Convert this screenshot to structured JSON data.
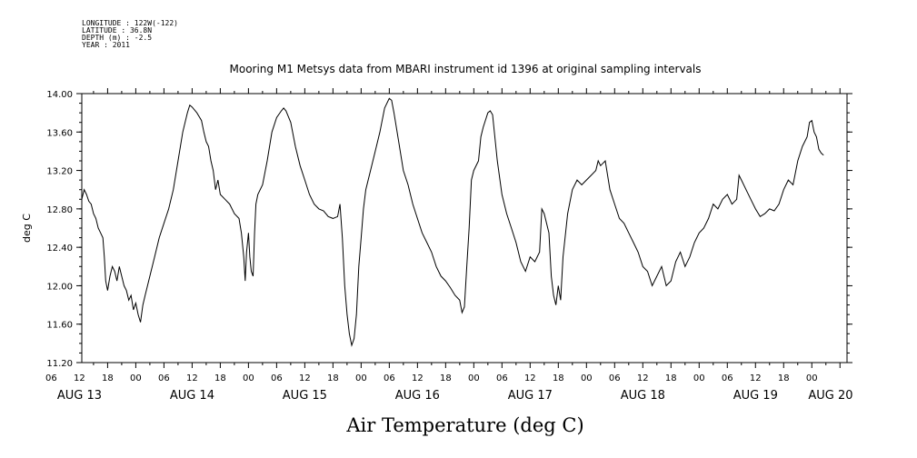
{
  "metadata_lines": [
    "LONGITUDE : 122W(-122)",
    "LATITUDE : 36.8N",
    "DEPTH (m) : -2.5",
    "YEAR : 2011"
  ],
  "chart_data": {
    "type": "line",
    "title": "Mooring M1 Metsys data from MBARI instrument id 1396 at original sampling intervals",
    "xlabel": "Air Temperature (deg C)",
    "ylabel": "deg C",
    "ylim": [
      11.2,
      14.0
    ],
    "xlim_hours": [
      60.5,
      223.5
    ],
    "x_axis_origin": "AUG 11 00:00 (x values in hours)",
    "yticks": [
      11.2,
      11.6,
      12.0,
      12.4,
      12.8,
      13.2,
      13.6,
      14.0
    ],
    "ytick_labels": [
      "11.20",
      "11.60",
      "12.00",
      "12.40",
      "12.80",
      "13.20",
      "13.60",
      "14.00"
    ],
    "xtick_hour_labels": [
      {
        "h": 54,
        "label": "06"
      },
      {
        "h": 60,
        "label": "12"
      },
      {
        "h": 66,
        "label": "18"
      },
      {
        "h": 72,
        "label": "00"
      },
      {
        "h": 78,
        "label": "06"
      },
      {
        "h": 84,
        "label": "12"
      },
      {
        "h": 90,
        "label": "18"
      },
      {
        "h": 96,
        "label": "00"
      },
      {
        "h": 102,
        "label": "06"
      },
      {
        "h": 108,
        "label": "12"
      },
      {
        "h": 114,
        "label": "18"
      },
      {
        "h": 120,
        "label": "00"
      },
      {
        "h": 126,
        "label": "06"
      },
      {
        "h": 132,
        "label": "12"
      },
      {
        "h": 138,
        "label": "18"
      },
      {
        "h": 144,
        "label": "00"
      },
      {
        "h": 150,
        "label": "06"
      },
      {
        "h": 156,
        "label": "12"
      },
      {
        "h": 162,
        "label": "18"
      },
      {
        "h": 168,
        "label": "00"
      },
      {
        "h": 174,
        "label": "06"
      },
      {
        "h": 180,
        "label": "12"
      },
      {
        "h": 186,
        "label": "18"
      },
      {
        "h": 192,
        "label": "00"
      },
      {
        "h": 198,
        "label": "06"
      },
      {
        "h": 204,
        "label": "12"
      },
      {
        "h": 210,
        "label": "18"
      },
      {
        "h": 216,
        "label": "00"
      }
    ],
    "xtick_day_labels": [
      {
        "h": 60,
        "label": "AUG 13"
      },
      {
        "h": 84,
        "label": "AUG 14"
      },
      {
        "h": 108,
        "label": "AUG 15"
      },
      {
        "h": 132,
        "label": "AUG 16"
      },
      {
        "h": 156,
        "label": "AUG 17"
      },
      {
        "h": 180,
        "label": "AUG 18"
      },
      {
        "h": 204,
        "label": "AUG 19"
      },
      {
        "h": 220,
        "label": "AUG 20"
      }
    ],
    "series": [
      {
        "name": "",
        "color": "#000000",
        "points": [
          [
            60.5,
            12.9
          ],
          [
            61.0,
            13.0
          ],
          [
            61.5,
            12.95
          ],
          [
            62.0,
            12.88
          ],
          [
            62.5,
            12.85
          ],
          [
            63.0,
            12.75
          ],
          [
            63.5,
            12.7
          ],
          [
            64.0,
            12.6
          ],
          [
            64.5,
            12.55
          ],
          [
            65.0,
            12.5
          ],
          [
            65.3,
            12.3
          ],
          [
            65.6,
            12.05
          ],
          [
            66.0,
            11.95
          ],
          [
            66.5,
            12.1
          ],
          [
            67.0,
            12.2
          ],
          [
            67.5,
            12.15
          ],
          [
            68.0,
            12.05
          ],
          [
            68.5,
            12.2
          ],
          [
            69.0,
            12.1
          ],
          [
            69.5,
            12.0
          ],
          [
            70.0,
            11.95
          ],
          [
            70.5,
            11.85
          ],
          [
            71.0,
            11.9
          ],
          [
            71.5,
            11.75
          ],
          [
            72.0,
            11.82
          ],
          [
            72.5,
            11.7
          ],
          [
            73.0,
            11.62
          ],
          [
            73.5,
            11.8
          ],
          [
            74.0,
            11.9
          ],
          [
            75.0,
            12.1
          ],
          [
            76.0,
            12.3
          ],
          [
            77.0,
            12.5
          ],
          [
            78.0,
            12.65
          ],
          [
            79.0,
            12.8
          ],
          [
            80.0,
            13.0
          ],
          [
            81.0,
            13.3
          ],
          [
            82.0,
            13.6
          ],
          [
            83.0,
            13.8
          ],
          [
            83.5,
            13.88
          ],
          [
            84.0,
            13.86
          ],
          [
            85.0,
            13.8
          ],
          [
            86.0,
            13.72
          ],
          [
            86.5,
            13.6
          ],
          [
            87.0,
            13.5
          ],
          [
            87.5,
            13.45
          ],
          [
            88.0,
            13.3
          ],
          [
            88.5,
            13.2
          ],
          [
            89.0,
            13.0
          ],
          [
            89.5,
            13.1
          ],
          [
            90.0,
            12.95
          ],
          [
            91.0,
            12.9
          ],
          [
            92.0,
            12.85
          ],
          [
            93.0,
            12.75
          ],
          [
            94.0,
            12.7
          ],
          [
            94.5,
            12.55
          ],
          [
            95.0,
            12.3
          ],
          [
            95.3,
            12.05
          ],
          [
            95.6,
            12.35
          ],
          [
            96.0,
            12.55
          ],
          [
            96.3,
            12.3
          ],
          [
            96.6,
            12.15
          ],
          [
            97.0,
            12.1
          ],
          [
            97.3,
            12.55
          ],
          [
            97.6,
            12.85
          ],
          [
            98.0,
            12.95
          ],
          [
            99.0,
            13.05
          ],
          [
            100.0,
            13.3
          ],
          [
            101.0,
            13.6
          ],
          [
            102.0,
            13.75
          ],
          [
            103.0,
            13.82
          ],
          [
            103.5,
            13.85
          ],
          [
            104.0,
            13.82
          ],
          [
            105.0,
            13.7
          ],
          [
            106.0,
            13.45
          ],
          [
            107.0,
            13.25
          ],
          [
            108.0,
            13.1
          ],
          [
            109.0,
            12.95
          ],
          [
            110.0,
            12.85
          ],
          [
            111.0,
            12.8
          ],
          [
            112.0,
            12.78
          ],
          [
            113.0,
            12.72
          ],
          [
            114.0,
            12.7
          ],
          [
            115.0,
            12.72
          ],
          [
            115.5,
            12.85
          ],
          [
            116.0,
            12.5
          ],
          [
            116.5,
            12.0
          ],
          [
            117.0,
            11.7
          ],
          [
            117.5,
            11.5
          ],
          [
            118.0,
            11.38
          ],
          [
            118.5,
            11.45
          ],
          [
            119.0,
            11.7
          ],
          [
            119.5,
            12.2
          ],
          [
            120.0,
            12.5
          ],
          [
            120.5,
            12.8
          ],
          [
            121.0,
            13.0
          ],
          [
            122.0,
            13.2
          ],
          [
            123.0,
            13.4
          ],
          [
            124.0,
            13.6
          ],
          [
            125.0,
            13.85
          ],
          [
            126.0,
            13.95
          ],
          [
            126.5,
            13.93
          ],
          [
            127.0,
            13.8
          ],
          [
            128.0,
            13.5
          ],
          [
            129.0,
            13.2
          ],
          [
            130.0,
            13.05
          ],
          [
            131.0,
            12.85
          ],
          [
            132.0,
            12.7
          ],
          [
            133.0,
            12.55
          ],
          [
            134.0,
            12.45
          ],
          [
            135.0,
            12.35
          ],
          [
            136.0,
            12.2
          ],
          [
            137.0,
            12.1
          ],
          [
            138.0,
            12.05
          ],
          [
            139.0,
            11.98
          ],
          [
            140.0,
            11.9
          ],
          [
            141.0,
            11.85
          ],
          [
            141.5,
            11.72
          ],
          [
            142.0,
            11.78
          ],
          [
            142.5,
            12.2
          ],
          [
            143.0,
            12.6
          ],
          [
            143.5,
            13.1
          ],
          [
            144.0,
            13.2
          ],
          [
            145.0,
            13.3
          ],
          [
            145.5,
            13.55
          ],
          [
            146.0,
            13.65
          ],
          [
            147.0,
            13.8
          ],
          [
            147.5,
            13.82
          ],
          [
            148.0,
            13.78
          ],
          [
            149.0,
            13.3
          ],
          [
            150.0,
            12.95
          ],
          [
            151.0,
            12.75
          ],
          [
            152.0,
            12.6
          ],
          [
            153.0,
            12.45
          ],
          [
            154.0,
            12.25
          ],
          [
            155.0,
            12.15
          ],
          [
            156.0,
            12.3
          ],
          [
            157.0,
            12.25
          ],
          [
            158.0,
            12.35
          ],
          [
            158.5,
            12.8
          ],
          [
            159.0,
            12.75
          ],
          [
            160.0,
            12.55
          ],
          [
            160.5,
            12.1
          ],
          [
            161.0,
            11.9
          ],
          [
            161.5,
            11.8
          ],
          [
            162.0,
            12.0
          ],
          [
            162.5,
            11.85
          ],
          [
            163.0,
            12.3
          ],
          [
            164.0,
            12.75
          ],
          [
            165.0,
            13.0
          ],
          [
            166.0,
            13.1
          ],
          [
            167.0,
            13.05
          ],
          [
            168.0,
            13.1
          ],
          [
            169.0,
            13.15
          ],
          [
            170.0,
            13.2
          ],
          [
            170.5,
            13.3
          ],
          [
            171.0,
            13.25
          ],
          [
            172.0,
            13.3
          ],
          [
            173.0,
            13.0
          ],
          [
            174.0,
            12.85
          ],
          [
            175.0,
            12.7
          ],
          [
            176.0,
            12.65
          ],
          [
            177.0,
            12.55
          ],
          [
            178.0,
            12.45
          ],
          [
            179.0,
            12.35
          ],
          [
            180.0,
            12.2
          ],
          [
            181.0,
            12.15
          ],
          [
            182.0,
            12.0
          ],
          [
            183.0,
            12.1
          ],
          [
            184.0,
            12.2
          ],
          [
            185.0,
            12.0
          ],
          [
            186.0,
            12.05
          ],
          [
            187.0,
            12.25
          ],
          [
            188.0,
            12.35
          ],
          [
            189.0,
            12.2
          ],
          [
            190.0,
            12.3
          ],
          [
            191.0,
            12.45
          ],
          [
            192.0,
            12.55
          ],
          [
            193.0,
            12.6
          ],
          [
            194.0,
            12.7
          ],
          [
            195.0,
            12.85
          ],
          [
            196.0,
            12.8
          ],
          [
            197.0,
            12.9
          ],
          [
            198.0,
            12.95
          ],
          [
            199.0,
            12.85
          ],
          [
            200.0,
            12.9
          ],
          [
            200.5,
            13.15
          ],
          [
            201.0,
            13.1
          ],
          [
            202.0,
            13.0
          ],
          [
            203.0,
            12.9
          ],
          [
            204.0,
            12.8
          ],
          [
            205.0,
            12.72
          ],
          [
            206.0,
            12.75
          ],
          [
            207.0,
            12.8
          ],
          [
            208.0,
            12.78
          ],
          [
            209.0,
            12.85
          ],
          [
            210.0,
            13.0
          ],
          [
            211.0,
            13.1
          ],
          [
            212.0,
            13.05
          ],
          [
            213.0,
            13.3
          ],
          [
            214.0,
            13.45
          ],
          [
            215.0,
            13.55
          ],
          [
            215.5,
            13.7
          ],
          [
            216.0,
            13.72
          ],
          [
            216.5,
            13.6
          ],
          [
            217.0,
            13.55
          ],
          [
            217.5,
            13.42
          ],
          [
            218.0,
            13.38
          ],
          [
            218.5,
            13.36
          ]
        ]
      }
    ]
  }
}
